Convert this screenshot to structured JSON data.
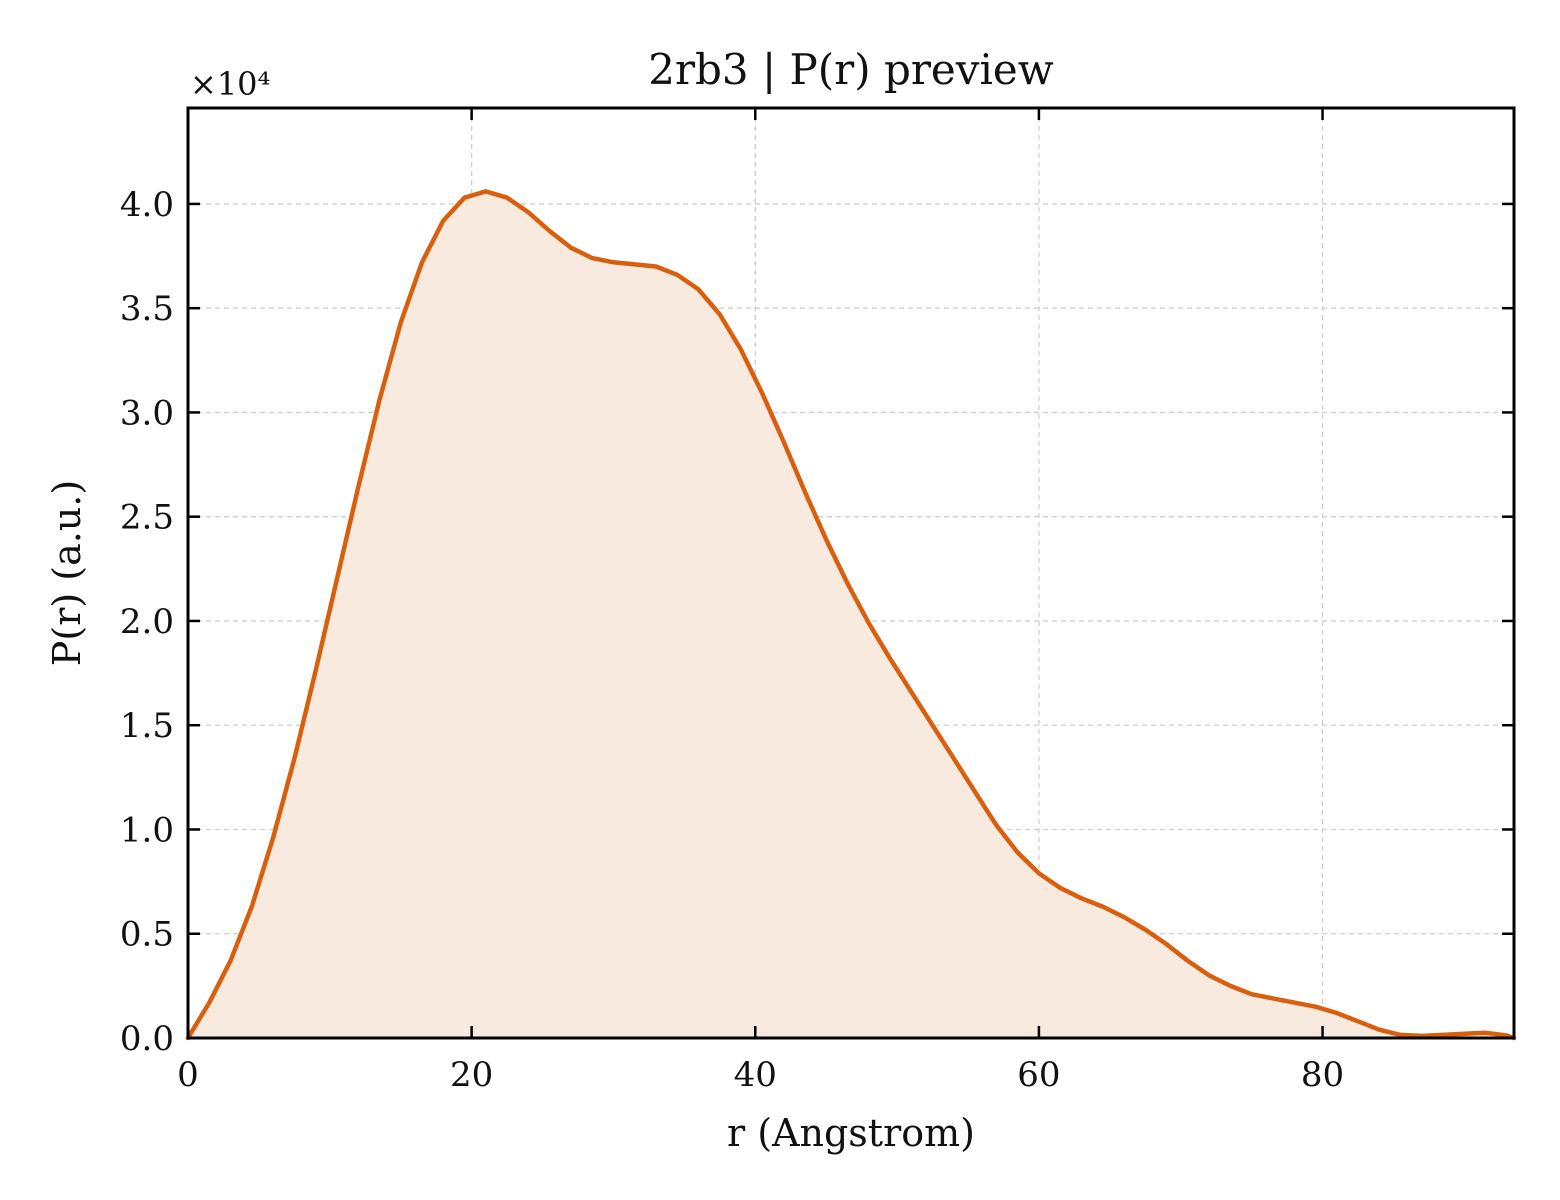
{
  "chart_data": {
    "type": "area",
    "title": "2rb3 | P(r) preview",
    "xlabel": "r (Angstrom)",
    "ylabel": "P(r) (a.u.)",
    "y_scale_label": "×10⁴",
    "y_scale_factor": 10000,
    "xlim": [
      0,
      93.5
    ],
    "ylim": [
      0,
      44600
    ],
    "x_ticks": [
      0,
      20,
      40,
      60,
      80
    ],
    "x_tick_labels": [
      "0",
      "20",
      "40",
      "60",
      "80"
    ],
    "y_ticks": [
      0,
      5000,
      10000,
      15000,
      20000,
      25000,
      30000,
      35000,
      40000
    ],
    "y_tick_labels": [
      "0.0",
      "0.5",
      "1.0",
      "1.5",
      "2.0",
      "2.5",
      "3.0",
      "3.5",
      "4.0"
    ],
    "grid": true,
    "line_color": "#d95f0e",
    "fill_color": "#f9eadf",
    "series": [
      {
        "x": [
          0,
          1.5,
          3.0,
          4.5,
          6.0,
          7.5,
          9.0,
          10.5,
          12.0,
          13.5,
          15.0,
          16.5,
          18.0,
          19.5,
          21.0,
          22.5,
          24.0,
          25.5,
          27.0,
          28.5,
          30.0,
          31.5,
          33.0,
          34.5,
          36.0,
          37.5,
          39.0,
          40.5,
          42.0,
          43.5,
          45.0,
          46.5,
          48.0,
          49.5,
          51.0,
          52.5,
          54.0,
          55.5,
          57.0,
          58.5,
          60.0,
          61.5,
          63.0,
          64.5,
          66.0,
          67.5,
          69.0,
          70.5,
          72.0,
          73.5,
          75.0,
          76.5,
          78.0,
          79.5,
          81.0,
          82.5,
          84.0,
          85.5,
          87.0,
          88.5,
          90.0,
          91.5,
          93.0,
          93.5
        ],
        "y": [
          0,
          1700,
          3700,
          6300,
          9600,
          13400,
          17600,
          22000,
          26400,
          30600,
          34300,
          37200,
          39200,
          40300,
          40600,
          40300,
          39600,
          38700,
          37900,
          37400,
          37200,
          37100,
          37000,
          36600,
          35900,
          34700,
          33000,
          30900,
          28600,
          26200,
          23900,
          21800,
          19900,
          18200,
          16600,
          15000,
          13400,
          11800,
          10200,
          8900,
          7900,
          7200,
          6700,
          6300,
          5800,
          5200,
          4500,
          3700,
          3000,
          2500,
          2100,
          1900,
          1700,
          1500,
          1200,
          800,
          400,
          150,
          100,
          150,
          200,
          250,
          120,
          0
        ]
      }
    ]
  }
}
